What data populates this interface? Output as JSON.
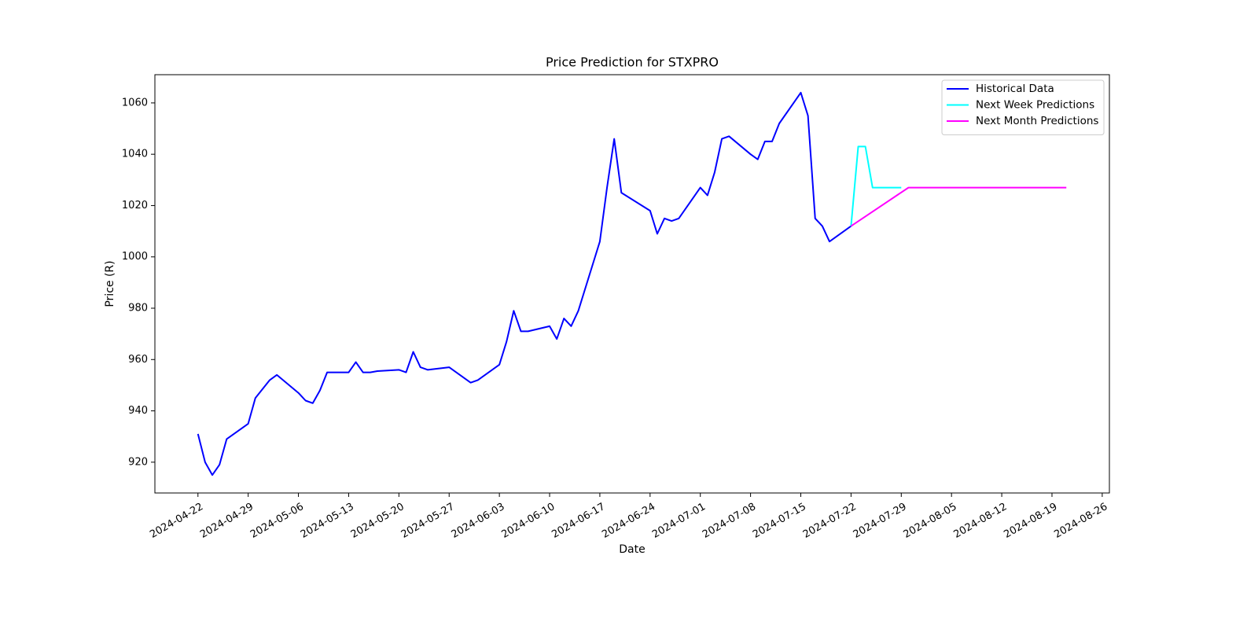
{
  "chart_data": {
    "type": "line",
    "title": "Price Prediction for STXPRO",
    "xlabel": "Date",
    "ylabel": "Price (R)",
    "xlim": [
      "2024-04-16",
      "2024-08-27"
    ],
    "ylim": [
      908,
      1071
    ],
    "x_ticks": [
      "2024-04-22",
      "2024-04-29",
      "2024-05-06",
      "2024-05-13",
      "2024-05-20",
      "2024-05-27",
      "2024-06-03",
      "2024-06-10",
      "2024-06-17",
      "2024-06-24",
      "2024-07-01",
      "2024-07-08",
      "2024-07-15",
      "2024-07-22",
      "2024-07-29",
      "2024-08-05",
      "2024-08-12",
      "2024-08-19",
      "2024-08-26"
    ],
    "y_ticks": [
      920,
      940,
      960,
      980,
      1000,
      1020,
      1040,
      1060
    ],
    "grid": false,
    "legend_position": "top-right",
    "series": [
      {
        "name": "Historical Data",
        "color": "#0000ff",
        "x": [
          "2024-04-22",
          "2024-04-23",
          "2024-04-24",
          "2024-04-25",
          "2024-04-26",
          "2024-04-29",
          "2024-04-30",
          "2024-05-02",
          "2024-05-03",
          "2024-05-06",
          "2024-05-07",
          "2024-05-08",
          "2024-05-09",
          "2024-05-10",
          "2024-05-13",
          "2024-05-14",
          "2024-05-15",
          "2024-05-16",
          "2024-05-17",
          "2024-05-20",
          "2024-05-21",
          "2024-05-22",
          "2024-05-23",
          "2024-05-24",
          "2024-05-27",
          "2024-05-30",
          "2024-05-31",
          "2024-06-03",
          "2024-06-04",
          "2024-06-05",
          "2024-06-06",
          "2024-06-07",
          "2024-06-10",
          "2024-06-11",
          "2024-06-12",
          "2024-06-13",
          "2024-06-14",
          "2024-06-17",
          "2024-06-18",
          "2024-06-19",
          "2024-06-20",
          "2024-06-24",
          "2024-06-25",
          "2024-06-26",
          "2024-06-27",
          "2024-06-28",
          "2024-07-01",
          "2024-07-02",
          "2024-07-03",
          "2024-07-04",
          "2024-07-05",
          "2024-07-08",
          "2024-07-09",
          "2024-07-10",
          "2024-07-11",
          "2024-07-12",
          "2024-07-15",
          "2024-07-16",
          "2024-07-17",
          "2024-07-18",
          "2024-07-19",
          "2024-07-22"
        ],
        "values": [
          931,
          920,
          915,
          919,
          929,
          935,
          945,
          952,
          954,
          947,
          944,
          943,
          948,
          955,
          955,
          959,
          955,
          955,
          955.5,
          956,
          955,
          963,
          957,
          956,
          957,
          951,
          952,
          958,
          967,
          979,
          971,
          971,
          973,
          968,
          976,
          973,
          979,
          1006,
          1027,
          1046,
          1025,
          1018,
          1009,
          1015,
          1014,
          1015,
          1027,
          1024,
          1033,
          1046,
          1047,
          1040,
          1038,
          1045,
          1045,
          1052,
          1064,
          1055,
          1015,
          1012,
          1006,
          1012
        ]
      },
      {
        "name": "Next Week Predictions",
        "color": "#00ffff",
        "x": [
          "2024-07-22",
          "2024-07-23",
          "2024-07-24",
          "2024-07-25",
          "2024-07-29"
        ],
        "values": [
          1012,
          1043,
          1043,
          1027,
          1027
        ]
      },
      {
        "name": "Next Month Predictions",
        "color": "#ff00ff",
        "x": [
          "2024-07-22",
          "2024-07-30",
          "2024-08-21"
        ],
        "values": [
          1012,
          1027,
          1027
        ]
      }
    ]
  }
}
